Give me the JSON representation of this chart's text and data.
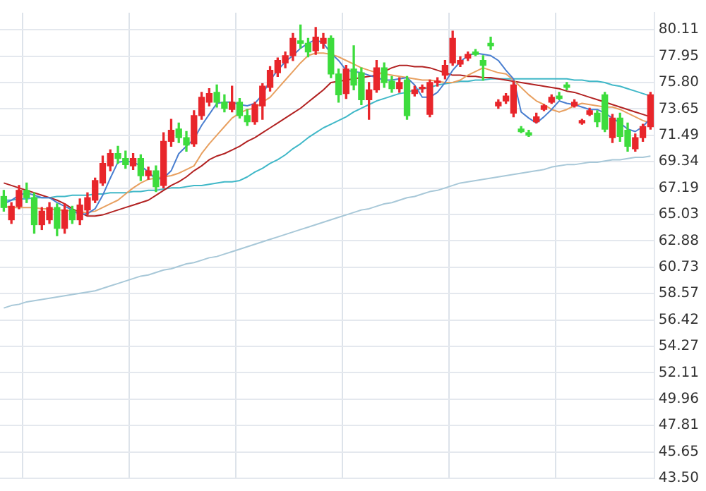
{
  "chart_data": {
    "type": "candlestick",
    "grid": true,
    "legend": false,
    "tick_labels": "y",
    "categories": [
      null,
      null,
      null,
      null,
      null,
      null,
      null,
      null,
      null,
      null,
      null,
      null,
      null,
      null,
      null,
      null,
      null,
      null,
      null,
      null,
      null,
      null,
      null,
      null,
      null,
      null,
      null,
      null,
      null,
      null,
      null,
      null,
      null,
      null,
      null,
      null,
      null,
      null,
      null,
      null,
      null,
      null,
      null,
      null,
      null,
      null,
      null,
      null,
      null,
      null,
      null,
      null,
      null,
      null,
      null,
      null,
      null,
      null,
      null,
      null,
      null,
      null,
      null,
      null,
      null,
      null,
      null,
      null,
      null,
      null,
      null,
      null,
      null,
      null,
      null,
      null,
      null,
      null,
      null,
      null,
      null,
      null,
      null,
      null,
      null,
      null
    ],
    "ohlc": [
      [
        66.5,
        67.0,
        65.3,
        65.6
      ],
      [
        64.6,
        66.0,
        64.3,
        65.7
      ],
      [
        65.7,
        67.4,
        65.5,
        67.0
      ],
      [
        67.0,
        67.6,
        66.0,
        66.4
      ],
      [
        66.4,
        66.8,
        63.5,
        64.2
      ],
      [
        64.2,
        65.6,
        63.8,
        65.3
      ],
      [
        64.6,
        66.0,
        64.3,
        65.6
      ],
      [
        65.6,
        65.9,
        63.3,
        63.9
      ],
      [
        63.9,
        65.9,
        63.5,
        65.4
      ],
      [
        65.4,
        65.7,
        64.3,
        64.6
      ],
      [
        64.6,
        66.3,
        64.2,
        65.8
      ],
      [
        65.4,
        66.8,
        65.0,
        66.4
      ],
      [
        66.2,
        68.0,
        66.0,
        67.8
      ],
      [
        67.6,
        69.8,
        67.4,
        69.2
      ],
      [
        69.0,
        70.3,
        68.6,
        70.0
      ],
      [
        70.0,
        70.6,
        69.2,
        69.6
      ],
      [
        69.6,
        70.2,
        68.8,
        69.1
      ],
      [
        69.0,
        70.0,
        68.7,
        69.6
      ],
      [
        69.6,
        69.9,
        67.8,
        68.2
      ],
      [
        68.2,
        68.9,
        67.9,
        68.6
      ],
      [
        68.6,
        69.0,
        66.9,
        67.3
      ],
      [
        67.4,
        71.7,
        67.2,
        71.0
      ],
      [
        71.0,
        72.8,
        70.6,
        71.9
      ],
      [
        72.0,
        72.5,
        70.9,
        71.3
      ],
      [
        71.3,
        71.8,
        70.2,
        70.7
      ],
      [
        70.8,
        73.5,
        70.6,
        73.1
      ],
      [
        73.1,
        75.0,
        72.8,
        74.6
      ],
      [
        74.2,
        75.3,
        73.9,
        74.9
      ],
      [
        75.0,
        75.6,
        73.8,
        74.2
      ],
      [
        74.2,
        74.8,
        73.4,
        73.7
      ],
      [
        73.6,
        75.5,
        73.4,
        74.2
      ],
      [
        74.2,
        74.5,
        72.9,
        73.1
      ],
      [
        73.1,
        73.6,
        72.3,
        72.6
      ],
      [
        72.6,
        74.2,
        72.4,
        74.0
      ],
      [
        73.9,
        75.7,
        72.8,
        75.5
      ],
      [
        75.4,
        77.1,
        75.1,
        76.8
      ],
      [
        76.6,
        77.8,
        76.3,
        77.6
      ],
      [
        77.4,
        78.3,
        77.0,
        78.0
      ],
      [
        78.0,
        79.8,
        77.6,
        79.4
      ],
      [
        79.2,
        80.5,
        78.6,
        79.0
      ],
      [
        79.0,
        79.4,
        77.9,
        78.3
      ],
      [
        78.4,
        80.3,
        78.1,
        79.5
      ],
      [
        79.0,
        79.8,
        78.6,
        79.4
      ],
      [
        79.4,
        79.6,
        76.2,
        76.5
      ],
      [
        76.5,
        76.9,
        74.2,
        74.8
      ],
      [
        74.9,
        77.2,
        74.5,
        76.9
      ],
      [
        76.9,
        78.8,
        75.2,
        75.6
      ],
      [
        76.6,
        77.0,
        74.0,
        74.4
      ],
      [
        74.4,
        75.8,
        72.8,
        75.2
      ],
      [
        75.2,
        77.6,
        75.0,
        77.0
      ],
      [
        77.0,
        77.4,
        75.4,
        75.8
      ],
      [
        75.9,
        76.3,
        75.0,
        75.3
      ],
      [
        75.3,
        76.2,
        75.0,
        75.8
      ],
      [
        76.0,
        76.3,
        72.8,
        73.1
      ],
      [
        74.9,
        75.5,
        74.7,
        75.2
      ],
      [
        75.3,
        75.6,
        75.0,
        75.4
      ],
      [
        73.2,
        76.0,
        73.0,
        75.8
      ],
      [
        75.8,
        76.2,
        75.5,
        75.9
      ],
      [
        76.4,
        77.6,
        76.1,
        77.2
      ],
      [
        77.4,
        80.0,
        77.2,
        79.4
      ],
      [
        77.3,
        77.9,
        77.1,
        77.6
      ],
      [
        77.8,
        78.3,
        77.6,
        78.1
      ],
      [
        78.3,
        78.5,
        78.0,
        78.1
      ],
      [
        77.6,
        78.0,
        76.0,
        77.2
      ],
      [
        79.0,
        79.5,
        78.5,
        78.8
      ],
      [
        73.9,
        74.4,
        73.7,
        74.2
      ],
      [
        74.3,
        74.9,
        74.1,
        74.7
      ],
      [
        73.3,
        75.9,
        73.0,
        75.6
      ],
      [
        72.0,
        72.2,
        71.7,
        71.8
      ],
      [
        71.7,
        71.9,
        71.4,
        71.5
      ],
      [
        72.6,
        73.3,
        72.5,
        73.0
      ],
      [
        73.6,
        74.0,
        73.5,
        73.9
      ],
      [
        74.2,
        74.8,
        74.1,
        74.6
      ],
      [
        74.7,
        75.0,
        74.4,
        74.5
      ],
      [
        75.6,
        75.8,
        75.2,
        75.4
      ],
      [
        73.9,
        74.4,
        73.8,
        74.2
      ],
      [
        72.5,
        72.8,
        72.4,
        72.7
      ],
      [
        73.2,
        73.7,
        73.1,
        73.5
      ],
      [
        73.3,
        73.5,
        72.2,
        72.6
      ],
      [
        74.8,
        75.0,
        71.8,
        72.0
      ],
      [
        71.3,
        73.2,
        70.9,
        72.9
      ],
      [
        72.9,
        73.3,
        71.0,
        71.4
      ],
      [
        71.9,
        72.5,
        70.2,
        70.6
      ],
      [
        70.4,
        71.6,
        70.2,
        71.3
      ],
      [
        71.3,
        72.4,
        71.0,
        72.2
      ],
      [
        72.2,
        75.0,
        72.0,
        74.8
      ]
    ],
    "series": [
      {
        "type": "line",
        "color": "#4a7fd0",
        "values": [
          65.9,
          66.2,
          66.6,
          66.8,
          66.6,
          66.4,
          66.4,
          66.0,
          65.7,
          65.4,
          65.0,
          65.1,
          65.5,
          66.6,
          68.0,
          69.3,
          69.4,
          69.3,
          69.0,
          68.5,
          67.9,
          68.0,
          68.6,
          70.0,
          70.6,
          71.2,
          72.3,
          73.2,
          74.1,
          74.2,
          74.2,
          74.0,
          73.9,
          74.1,
          74.8,
          76.0,
          76.8,
          77.5,
          78.0,
          78.6,
          79.0,
          79.3,
          79.0,
          78.2,
          77.6,
          76.8,
          76.7,
          76.6,
          76.4,
          76.2,
          76.0,
          76.0,
          76.1,
          76.2,
          75.6,
          74.6,
          74.6,
          75.0,
          75.8,
          76.8,
          77.5,
          78.0,
          78.2,
          78.1,
          78.0,
          77.6,
          76.8,
          76.1,
          73.4,
          72.9,
          72.5,
          73.0,
          73.6,
          74.3,
          74.1,
          74.0,
          73.8,
          73.6,
          73.6,
          73.3,
          72.9,
          72.5,
          72.0,
          71.8,
          72.2,
          72.9
        ]
      },
      {
        "type": "line",
        "color": "#e8a060",
        "values": [
          65.7,
          65.6,
          65.6,
          65.6,
          65.6,
          65.5,
          65.5,
          65.4,
          65.4,
          65.3,
          65.2,
          65.2,
          65.3,
          65.6,
          65.9,
          66.2,
          66.7,
          67.2,
          67.6,
          67.9,
          68.0,
          68.1,
          68.2,
          68.4,
          68.7,
          69.0,
          70.0,
          70.8,
          71.5,
          72.2,
          72.9,
          73.3,
          73.6,
          73.7,
          74.2,
          74.6,
          75.3,
          76.0,
          76.7,
          77.4,
          78.0,
          78.2,
          78.2,
          78.1,
          77.9,
          77.6,
          77.3,
          77.0,
          76.8,
          76.6,
          76.5,
          76.4,
          76.3,
          76.2,
          76.1,
          76.0,
          76.0,
          75.9,
          75.8,
          75.8,
          76.0,
          76.4,
          76.7,
          77.0,
          76.8,
          76.6,
          76.5,
          76.0,
          75.4,
          74.8,
          74.3,
          74.0,
          73.6,
          73.4,
          73.6,
          73.9,
          74.1,
          74.0,
          73.9,
          73.8,
          73.8,
          73.6,
          73.3,
          73.0,
          72.7,
          72.5
        ]
      },
      {
        "type": "line",
        "color": "#b22222",
        "values": [
          67.6,
          67.4,
          67.2,
          67.0,
          66.8,
          66.6,
          66.4,
          66.2,
          65.9,
          65.5,
          65.2,
          64.9,
          64.9,
          65.0,
          65.2,
          65.4,
          65.6,
          65.8,
          66.0,
          66.2,
          66.6,
          67.0,
          67.4,
          67.7,
          68.1,
          68.6,
          69.0,
          69.5,
          69.8,
          70.0,
          70.3,
          70.6,
          71.0,
          71.3,
          71.7,
          72.1,
          72.5,
          72.9,
          73.3,
          73.7,
          74.2,
          74.7,
          75.2,
          75.8,
          75.9,
          76.0,
          76.1,
          76.2,
          76.3,
          76.4,
          76.7,
          77.0,
          77.2,
          77.2,
          77.1,
          77.1,
          77.0,
          76.8,
          76.6,
          76.4,
          76.4,
          76.3,
          76.3,
          76.2,
          76.2,
          76.1,
          76.0,
          75.9,
          75.8,
          75.7,
          75.6,
          75.5,
          75.4,
          75.3,
          75.1,
          75.0,
          74.8,
          74.6,
          74.4,
          74.2,
          74.0,
          73.8,
          73.6,
          73.4,
          73.2,
          73.0
        ]
      },
      {
        "type": "line",
        "color": "#40b8c8",
        "values": [
          66.2,
          66.2,
          66.3,
          66.3,
          66.4,
          66.4,
          66.4,
          66.5,
          66.5,
          66.6,
          66.6,
          66.6,
          66.7,
          66.7,
          66.8,
          66.8,
          66.8,
          66.9,
          66.9,
          67.0,
          67.0,
          67.1,
          67.2,
          67.2,
          67.3,
          67.4,
          67.4,
          67.5,
          67.6,
          67.7,
          67.7,
          67.8,
          68.1,
          68.5,
          68.8,
          69.2,
          69.5,
          69.9,
          70.4,
          70.8,
          71.3,
          71.7,
          72.1,
          72.4,
          72.7,
          73.0,
          73.4,
          73.7,
          74.0,
          74.3,
          74.5,
          74.7,
          74.9,
          75.0,
          75.2,
          75.3,
          75.4,
          75.6,
          75.7,
          75.8,
          75.9,
          75.9,
          76.0,
          76.0,
          76.1,
          76.1,
          76.1,
          76.1,
          76.1,
          76.1,
          76.1,
          76.1,
          76.1,
          76.1,
          76.1,
          76.0,
          76.0,
          75.9,
          75.9,
          75.8,
          75.6,
          75.5,
          75.3,
          75.1,
          74.9,
          74.7
        ]
      },
      {
        "type": "line",
        "color": "#a8c8d8",
        "values": [
          57.4,
          57.6,
          57.7,
          57.9,
          58.0,
          58.1,
          58.2,
          58.3,
          58.4,
          58.5,
          58.6,
          58.7,
          58.8,
          59.0,
          59.2,
          59.4,
          59.6,
          59.8,
          60.0,
          60.1,
          60.3,
          60.5,
          60.6,
          60.8,
          61.0,
          61.1,
          61.3,
          61.5,
          61.6,
          61.8,
          62.0,
          62.2,
          62.4,
          62.6,
          62.8,
          63.0,
          63.2,
          63.4,
          63.6,
          63.8,
          64.0,
          64.2,
          64.4,
          64.6,
          64.8,
          65.0,
          65.2,
          65.4,
          65.5,
          65.7,
          65.9,
          66.0,
          66.2,
          66.4,
          66.5,
          66.7,
          66.9,
          67.0,
          67.2,
          67.4,
          67.6,
          67.7,
          67.8,
          67.9,
          68.0,
          68.1,
          68.2,
          68.3,
          68.4,
          68.5,
          68.6,
          68.7,
          68.9,
          69.0,
          69.1,
          69.1,
          69.2,
          69.3,
          69.3,
          69.4,
          69.5,
          69.5,
          69.6,
          69.7,
          69.7,
          69.8
        ]
      }
    ],
    "ylim": [
      43.5,
      81.5
    ],
    "yticks": [
      80.11,
      77.95,
      {
        "value": 75.8,
        "label": "75.80"
      },
      73.65,
      71.49,
      69.34,
      67.19,
      65.03,
      62.88,
      60.73,
      58.57,
      56.42,
      54.27,
      52.11,
      49.96,
      47.81,
      45.65,
      {
        "value": 43.5,
        "label": "43.50"
      }
    ]
  }
}
